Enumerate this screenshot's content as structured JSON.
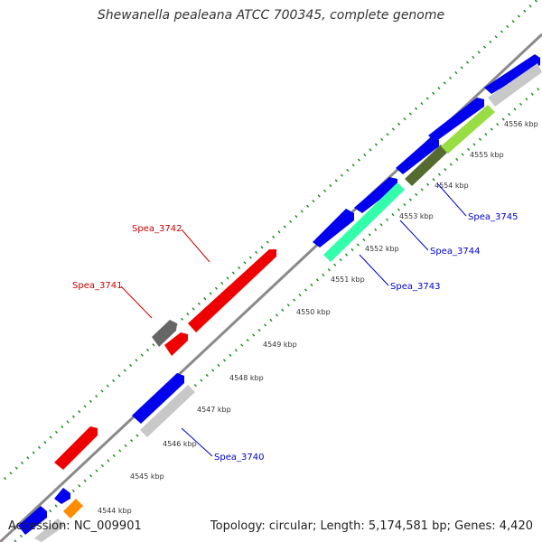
{
  "title": "Shewanella pealeana ATCC 700345, complete genome",
  "accession": "Accession: NC_009901",
  "topology": "Topology: circular; Length: 5,174,581 bp; Genes: 4,420",
  "colors": {
    "forward_cds": "#0000ee",
    "reverse_cds": "#ee0000",
    "blue_label": "#0000cc",
    "red_label": "#cc0000",
    "backbone": "#888888",
    "gc_skew_ticks": "#228b22",
    "spea_3743": "#33ffaa",
    "spea_3744": "#556b2f",
    "spea_3745": "#99dd44",
    "pseudo_gray": "#c8c8c8",
    "dark_gray": "#666666",
    "orange": "#ff8c00"
  },
  "scale_labels": [
    "4544 kbp",
    "4545 kbp",
    "4546 kbp",
    "4547 kbp",
    "4548 kbp",
    "4549 kbp",
    "4550 kbp",
    "4551 kbp",
    "4552 kbp",
    "4553 kbp",
    "4554 kbp",
    "4555 kbp",
    "4556 kbp"
  ],
  "gene_labels": {
    "spea_3740": "Spea_3740",
    "spea_3741": "Spea_3741",
    "spea_3742": "Spea_3742",
    "spea_3743": "Spea_3743",
    "spea_3744": "Spea_3744",
    "spea_3745": "Spea_3745"
  }
}
